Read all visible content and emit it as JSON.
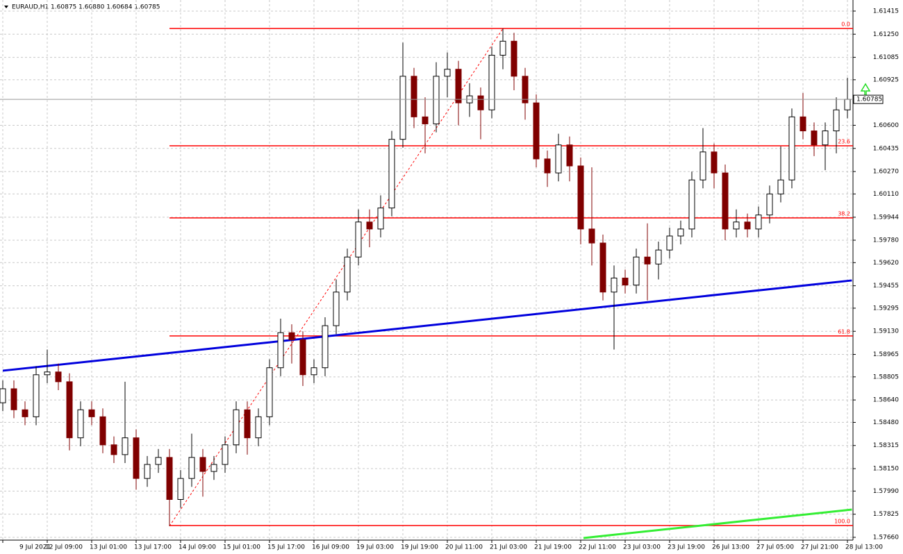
{
  "chart_data": {
    "type": "candlestick",
    "title": "EURAUD,H1  1.60875 1.60880 1.60684 1.60785",
    "categories": [
      "9 Jul 2021",
      null,
      null,
      null,
      "12 Jul 09:00",
      null,
      null,
      null,
      "13 Jul 01:00",
      null,
      null,
      null,
      "13 Jul 17:00",
      null,
      null,
      null,
      "14 Jul 09:00",
      null,
      null,
      null,
      "15 Jul 01:00",
      null,
      null,
      null,
      "15 Jul 17:00",
      null,
      null,
      null,
      "16 Jul 09:00",
      null,
      null,
      null,
      "19 Jul 03:00",
      null,
      null,
      null,
      "19 Jul 19:00",
      null,
      null,
      null,
      "20 Jul 11:00",
      null,
      null,
      null,
      "21 Jul 03:00",
      null,
      null,
      null,
      "21 Jul 19:00",
      null,
      null,
      null,
      "22 Jul 11:00",
      null,
      null,
      null,
      "23 Jul 03:00",
      null,
      null,
      null,
      "23 Jul 19:00",
      null,
      null,
      null,
      "26 Jul 13:00",
      null,
      null,
      null,
      "27 Jul 05:00",
      null,
      null,
      null,
      "27 Jul 21:00",
      null,
      null,
      null,
      "28 Jul 13:00"
    ],
    "open": [
      1.5862,
      1.5872,
      1.5857,
      1.5852,
      1.5882,
      1.5884,
      1.5877,
      1.5837,
      1.5857,
      1.5852,
      1.5832,
      1.5825,
      1.5837,
      1.5808,
      1.5818,
      1.5823,
      1.5793,
      1.5808,
      1.5823,
      1.5813,
      1.5818,
      1.5832,
      1.5857,
      1.5837,
      1.5852,
      1.5887,
      1.5912,
      1.5907,
      1.5882,
      1.5887,
      1.5917,
      1.5941,
      1.5966,
      1.5991,
      1.5986,
      1.6001,
      1.605,
      1.6095,
      1.6066,
      1.6061,
      1.6095,
      1.61,
      1.6076,
      1.6081,
      1.6071,
      1.611,
      1.612,
      1.6095,
      1.6076,
      1.6036,
      1.6026,
      1.6046,
      1.6031,
      1.5986,
      1.5976,
      1.5941,
      1.5951,
      1.5946,
      1.5966,
      1.5961,
      1.5971,
      1.5981,
      1.5986,
      1.6021,
      1.6041,
      1.6026,
      1.5986,
      1.5991,
      1.5986,
      1.5996,
      1.6011,
      1.6021,
      1.6066,
      1.6056,
      1.6046,
      1.6056,
      1.6071
    ],
    "high": [
      1.5878,
      1.5878,
      1.5863,
      1.5888,
      1.59,
      1.589,
      1.5883,
      1.5863,
      1.5863,
      1.5858,
      1.5838,
      1.5877,
      1.5843,
      1.5824,
      1.5829,
      1.5829,
      1.5814,
      1.584,
      1.5829,
      1.5824,
      1.5838,
      1.5863,
      1.5863,
      1.5858,
      1.5893,
      1.5922,
      1.5918,
      1.5913,
      1.5893,
      1.5923,
      1.595,
      1.5972,
      1.6,
      1.6,
      1.601,
      1.6056,
      1.6119,
      1.6101,
      1.608,
      1.6105,
      1.6112,
      1.6106,
      1.609,
      1.6087,
      1.6116,
      1.6129,
      1.6126,
      1.6101,
      1.6082,
      1.6042,
      1.6054,
      1.6052,
      1.6037,
      1.603,
      1.5982,
      1.596,
      1.5957,
      1.5972,
      1.599,
      1.5977,
      1.5987,
      1.5992,
      1.6027,
      1.6058,
      1.6047,
      1.6032,
      1.6,
      1.5997,
      1.6002,
      1.6017,
      1.6045,
      1.6072,
      1.6083,
      1.6062,
      1.6062,
      1.608,
      1.6094
    ],
    "low": [
      1.5856,
      1.5851,
      1.5846,
      1.5846,
      1.5876,
      1.5871,
      1.5828,
      1.5831,
      1.5846,
      1.5826,
      1.5819,
      1.5819,
      1.58,
      1.5802,
      1.5812,
      1.5774,
      1.5787,
      1.5802,
      1.5795,
      1.5807,
      1.5812,
      1.5826,
      1.5825,
      1.5831,
      1.5846,
      1.5881,
      1.589,
      1.5874,
      1.5876,
      1.5881,
      1.5911,
      1.5935,
      1.596,
      1.5973,
      1.598,
      1.5995,
      1.6044,
      1.6058,
      1.604,
      1.6055,
      1.608,
      1.606,
      1.6066,
      1.605,
      1.6065,
      1.61,
      1.6085,
      1.6064,
      1.603,
      1.6016,
      1.602,
      1.602,
      1.5975,
      1.596,
      1.5935,
      1.59,
      1.594,
      1.594,
      1.5935,
      1.595,
      1.5965,
      1.5975,
      1.598,
      1.6015,
      1.6015,
      1.5978,
      1.598,
      1.598,
      1.598,
      1.599,
      1.6005,
      1.6015,
      1.605,
      1.6038,
      1.6028,
      1.604,
      1.6065
    ],
    "close": [
      1.5872,
      1.5857,
      1.5852,
      1.5882,
      1.5884,
      1.5877,
      1.5837,
      1.5857,
      1.5852,
      1.5832,
      1.5825,
      1.5837,
      1.5808,
      1.5818,
      1.5823,
      1.5793,
      1.5808,
      1.5823,
      1.5813,
      1.5818,
      1.5832,
      1.5857,
      1.5837,
      1.5852,
      1.5887,
      1.5912,
      1.5907,
      1.5882,
      1.5887,
      1.5917,
      1.5941,
      1.5966,
      1.5991,
      1.5986,
      1.6001,
      1.605,
      1.6095,
      1.6066,
      1.6061,
      1.6095,
      1.61,
      1.6076,
      1.6081,
      1.6071,
      1.611,
      1.612,
      1.6095,
      1.6076,
      1.6036,
      1.6026,
      1.6046,
      1.6031,
      1.5986,
      1.5976,
      1.5941,
      1.5951,
      1.5946,
      1.5966,
      1.5961,
      1.5971,
      1.5981,
      1.5986,
      1.6021,
      1.6041,
      1.6026,
      1.5986,
      1.5991,
      1.5986,
      1.5996,
      1.6011,
      1.6021,
      1.6066,
      1.6056,
      1.6046,
      1.6056,
      1.6071,
      1.60785
    ],
    "up_color": "#000000",
    "down_color": "#800000",
    "ylim": [
      1.5764,
      1.61494
    ],
    "yticks": [
      1.61415,
      {
        "value": 1.6125,
        "label": "1.61250"
      },
      1.61085,
      1.60925,
      {
        "value": 1.606,
        "label": "1.60600"
      },
      1.60435,
      {
        "value": 1.6027,
        "label": "1.60270"
      },
      {
        "value": 1.6011,
        "label": "1.60110"
      },
      1.59944,
      {
        "value": 1.5978,
        "label": "1.59780"
      },
      {
        "value": 1.5962,
        "label": "1.59620"
      },
      1.59455,
      1.59295,
      {
        "value": 1.5913,
        "label": "1.59130"
      },
      1.58965,
      1.58805,
      {
        "value": 1.5864,
        "label": "1.58640"
      },
      {
        "value": 1.5848,
        "label": "1.58480"
      },
      1.58315,
      {
        "value": 1.5815,
        "label": "1.58150"
      },
      {
        "value": 1.5799,
        "label": "1.57990"
      },
      1.57825,
      {
        "value": 1.5766,
        "label": "1.57660"
      }
    ],
    "grid": true,
    "current_price": 1.60785,
    "fibonacci": {
      "color": "#ff0000",
      "from": [
        15,
        1.5774
      ],
      "to": [
        45,
        1.6129
      ],
      "levels": [
        {
          "label": "0.0",
          "price": 1.61291
        },
        {
          "label": "23.6",
          "price": 1.60454
        },
        {
          "label": "38.2",
          "price": 1.59939
        },
        {
          "label": "61.8",
          "price": 1.59097
        },
        {
          "label": "100.0",
          "price": 1.57744
        }
      ]
    },
    "trendlines": [
      {
        "color": "#0000dd",
        "points": [
          [
            0,
            1.58849
          ],
          [
            76.4,
            1.59493
          ]
        ]
      },
      {
        "color": "#33ee33",
        "points": [
          [
            52.25,
            1.57655
          ],
          [
            76.4,
            1.57858
          ]
        ]
      }
    ]
  }
}
